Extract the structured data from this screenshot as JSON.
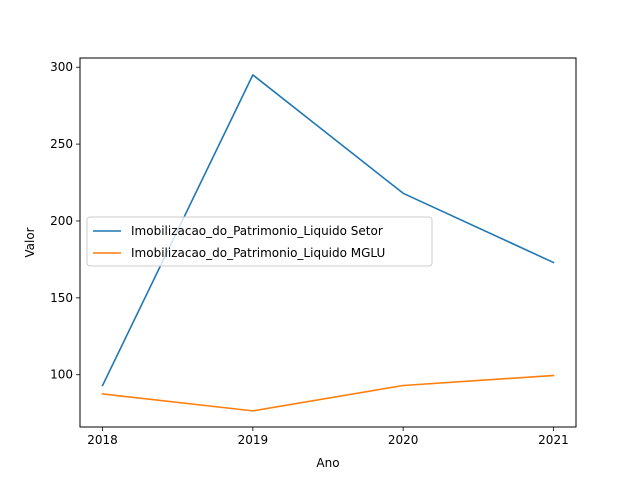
{
  "chart_data": {
    "type": "line",
    "title": "",
    "xlabel": "Ano",
    "ylabel": "Valor",
    "x": [
      2018,
      2019,
      2020,
      2021
    ],
    "xticks": [
      "2018",
      "2019",
      "2020",
      "2021"
    ],
    "yticks": [
      100,
      150,
      200,
      250,
      300
    ],
    "xlim": [
      2017.85,
      2021.15
    ],
    "ylim": [
      66,
      306
    ],
    "grid": false,
    "legend_position": "center-left",
    "series": [
      {
        "name": "Imobilizacao_do_Patrimonio_Liquido Setor",
        "color": "#1f77b4",
        "values": [
          93,
          295,
          218,
          173
        ]
      },
      {
        "name": "Imobilizacao_do_Patrimonio_Liquido MGLU",
        "color": "#ff7f0e",
        "values": [
          87.5,
          76.5,
          93,
          99.5
        ]
      }
    ]
  }
}
